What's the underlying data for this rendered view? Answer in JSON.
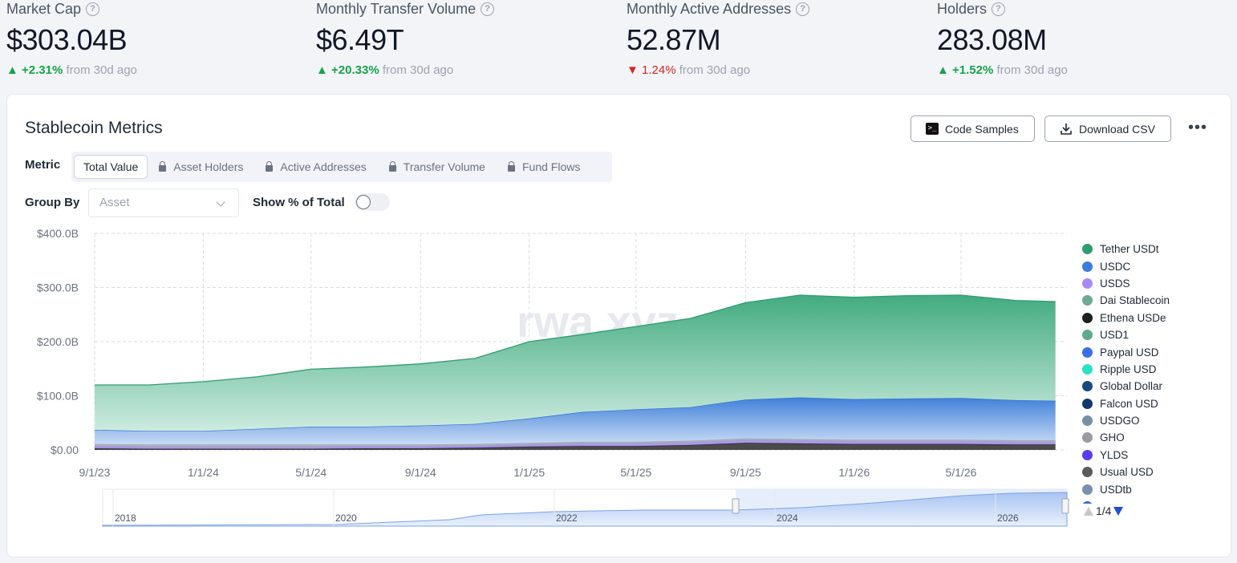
{
  "stats": [
    {
      "label": "Market Cap",
      "value": "$303.04B",
      "change": "+2.31%",
      "direction": "up",
      "suffix": "from 30d ago"
    },
    {
      "label": "Monthly Transfer Volume",
      "value": "$6.49T",
      "change": "+20.33%",
      "direction": "up",
      "suffix": "from 30d ago"
    },
    {
      "label": "Monthly Active Addresses",
      "value": "52.87M",
      "change": "1.24%",
      "direction": "down",
      "suffix": "from 30d ago"
    },
    {
      "label": "Holders",
      "value": "283.08M",
      "change": "+1.52%",
      "direction": "up",
      "suffix": "from 30d ago"
    }
  ],
  "card": {
    "title": "Stablecoin Metrics",
    "code_samples": "Code Samples",
    "download_csv": "Download CSV",
    "more": "•••",
    "metric_label": "Metric",
    "tabs": [
      "Total Value",
      "Asset Holders",
      "Active Addresses",
      "Transfer Volume",
      "Fund Flows"
    ],
    "group_by_label": "Group By",
    "group_by_value": "Asset",
    "show_pct_label": "Show % of Total",
    "show_pct_on": false,
    "pager": "1/4"
  },
  "chart_data": {
    "type": "area",
    "stacked": true,
    "ylim": [
      0,
      400
    ],
    "y_ticks": [
      "$0.00",
      "$100.0B",
      "$200.0B",
      "$300.0B",
      "$400.0B"
    ],
    "x_ticks": [
      "9/1/23",
      "1/1/24",
      "5/1/24",
      "9/1/24",
      "1/1/25",
      "5/1/25",
      "9/1/25",
      "1/1/26",
      "5/1/26"
    ],
    "x": [
      "9/1/23",
      "11/1/23",
      "1/1/24",
      "3/1/24",
      "5/1/24",
      "7/1/24",
      "9/1/24",
      "11/1/24",
      "1/1/25",
      "3/1/25",
      "5/1/25",
      "7/1/25",
      "9/1/25",
      "11/1/25",
      "1/1/26",
      "3/1/26",
      "5/1/26",
      "7/1/26",
      "8/15/26"
    ],
    "series": [
      {
        "name": "Ethena USDe",
        "color": "#2a2a2a",
        "values": [
          3,
          2,
          2,
          2,
          2,
          3,
          3,
          4,
          6,
          7,
          7,
          9,
          13,
          12,
          11,
          11,
          11,
          10,
          10
        ]
      },
      {
        "name": "USDS",
        "color": "#a78bfa",
        "values": [
          3,
          3,
          3,
          3,
          3,
          3,
          3,
          3,
          3,
          4,
          4,
          4,
          4,
          4,
          4,
          4,
          4,
          4,
          4
        ]
      },
      {
        "name": "Dai Stablecoin",
        "color": "#9ca3af",
        "values": [
          5,
          5,
          5,
          5,
          5,
          4,
          4,
          4,
          4,
          4,
          4,
          4,
          4,
          4,
          4,
          4,
          4,
          4,
          4
        ]
      },
      {
        "name": "USDC",
        "color": "#3b7ddd",
        "values": [
          26,
          25,
          25,
          29,
          33,
          33,
          35,
          37,
          45,
          55,
          60,
          62,
          72,
          77,
          75,
          76,
          77,
          74,
          73
        ]
      },
      {
        "name": "Tether USDt",
        "color": "#34a77a",
        "values": [
          83,
          85,
          91,
          96,
          106,
          110,
          114,
          121,
          142,
          143,
          153,
          164,
          179,
          189,
          188,
          190,
          190,
          184,
          183
        ]
      }
    ],
    "legend": [
      {
        "name": "Tether USDt",
        "color": "#2e9e70"
      },
      {
        "name": "USDC",
        "color": "#3b7ddd"
      },
      {
        "name": "USDS",
        "color": "#a78bfa"
      },
      {
        "name": "Dai Stablecoin",
        "color": "#6ea995"
      },
      {
        "name": "Ethena USDe",
        "color": "#1f1f1f"
      },
      {
        "name": "USD1",
        "color": "#5faa8b"
      },
      {
        "name": "Paypal USD",
        "color": "#3b6ee8"
      },
      {
        "name": "Ripple USD",
        "color": "#2de0c5"
      },
      {
        "name": "Global Dollar",
        "color": "#174a7c"
      },
      {
        "name": "Falcon USD",
        "color": "#12386b"
      },
      {
        "name": "USDGO",
        "color": "#7690a6"
      },
      {
        "name": "GHO",
        "color": "#9a9aa3"
      },
      {
        "name": "YLDS",
        "color": "#5b3cf0"
      },
      {
        "name": "Usual USD",
        "color": "#5b5b5b"
      },
      {
        "name": "USDtb",
        "color": "#7890ae"
      },
      {
        "name": "",
        "color": "#2f6fd1"
      }
    ],
    "navigator_ticks": [
      "2018",
      "2020",
      "2022",
      "2024",
      "2026"
    ],
    "watermark": "rwa.xyz"
  }
}
